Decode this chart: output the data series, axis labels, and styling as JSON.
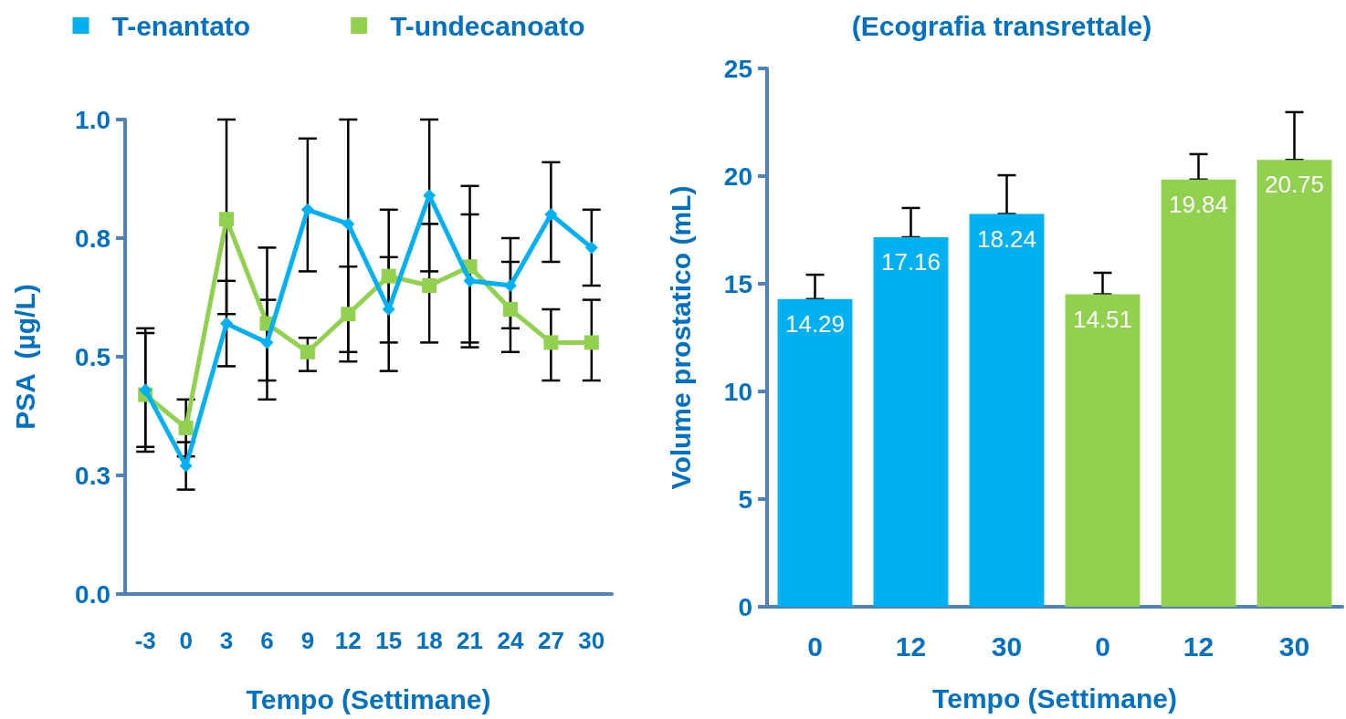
{
  "chart_data": [
    {
      "type": "line",
      "xlabel": "Tempo (Settimane)",
      "ylabel": "PSA  (µg/L)",
      "legend": "top",
      "line_style": "solid",
      "categories": [
        "-3",
        "0",
        "3",
        "6",
        "9",
        "12",
        "15",
        "18",
        "21",
        "24",
        "27",
        "30"
      ],
      "ylim": [
        0,
        1
      ],
      "yticks": [
        {
          "value": 0,
          "label": "0.0"
        },
        {
          "value": 0.25,
          "label": "0.3"
        },
        {
          "value": 0.5,
          "label": "0.5"
        },
        {
          "value": 0.75,
          "label": "0.8"
        },
        {
          "value": 1,
          "label": "1.0"
        }
      ],
      "series": [
        {
          "name": "T-enantato",
          "color": "#00b0f0",
          "marker": "diamond",
          "values": [
            0.43,
            0.27,
            0.57,
            0.53,
            0.81,
            0.78,
            0.6,
            0.84,
            0.66,
            0.65,
            0.8,
            0.73
          ],
          "errors": [
            [
              0.3,
              0.56
            ],
            [
              0.22,
              0.32
            ],
            [
              0.48,
              0.66
            ],
            [
              0.45,
              0.62
            ],
            [
              0.68,
              0.96
            ],
            [
              0.51,
              1.0
            ],
            [
              0.47,
              0.81
            ],
            [
              0.68,
              1.0
            ],
            [
              0.52,
              0.8
            ],
            [
              0.51,
              0.75
            ],
            [
              0.7,
              0.91
            ],
            [
              0.65,
              0.81
            ]
          ]
        },
        {
          "name": "T-undecanoato",
          "color": "#92d050",
          "marker": "square",
          "values": [
            0.42,
            0.35,
            0.79,
            0.57,
            0.51,
            0.59,
            0.67,
            0.65,
            0.69,
            0.6,
            0.53,
            0.53
          ],
          "errors": [
            [
              0.31,
              0.55
            ],
            [
              0.29,
              0.41
            ],
            [
              0.59,
              1.0
            ],
            [
              0.41,
              0.73
            ],
            [
              0.47,
              0.54
            ],
            [
              0.49,
              0.69
            ],
            [
              0.53,
              0.71
            ],
            [
              0.53,
              0.78
            ],
            [
              0.53,
              0.86
            ],
            [
              0.56,
              0.7
            ],
            [
              0.45,
              0.6
            ],
            [
              0.45,
              0.62
            ]
          ]
        }
      ]
    },
    {
      "type": "bar",
      "title": "(Ecografia transrettale)",
      "xlabel": "Tempo (Settimane)",
      "ylabel": "Volume prostatico (mL)",
      "data_labels": true,
      "categories": [
        "0",
        "12",
        "30",
        "0",
        "12",
        "30"
      ],
      "ylim": [
        0,
        25
      ],
      "yticks": [
        0,
        5,
        10,
        15,
        20,
        25
      ],
      "values": [
        14.29,
        17.16,
        18.24,
        14.51,
        19.84,
        20.75
      ],
      "colors": [
        "#00b0f0",
        "#00b0f0",
        "#00b0f0",
        "#92d050",
        "#92d050",
        "#92d050"
      ],
      "errors": [
        [
          14.29,
          15.42
        ],
        [
          17.16,
          18.52
        ],
        [
          18.24,
          20.04
        ],
        [
          14.51,
          15.51
        ],
        [
          19.84,
          21.02
        ],
        [
          20.75,
          22.97
        ]
      ]
    }
  ]
}
